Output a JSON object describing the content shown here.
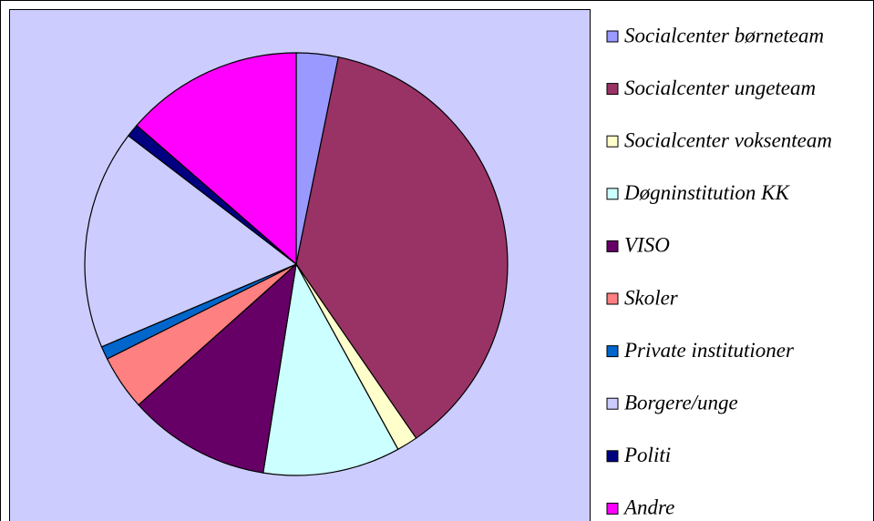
{
  "chart_data": {
    "type": "pie",
    "categories": [
      "Socialcenter børneteam",
      "Socialcenter ungeteam",
      "Socialcenter voksenteam",
      "Døgninstitution KK",
      "VISO",
      "Skoler",
      "Private institutioner",
      "Borgere/unge",
      "Politi",
      "Andre"
    ],
    "values": [
      3.2,
      37.2,
      1.6,
      10.5,
      10.9,
      4.2,
      1.0,
      16.8,
      1.0,
      13.6
    ],
    "colors": [
      "#9999ff",
      "#993366",
      "#ffffcc",
      "#ccffff",
      "#660066",
      "#ff8080",
      "#0066cc",
      "#ccccff",
      "#000080",
      "#ff00ff"
    ],
    "legend": "right"
  }
}
